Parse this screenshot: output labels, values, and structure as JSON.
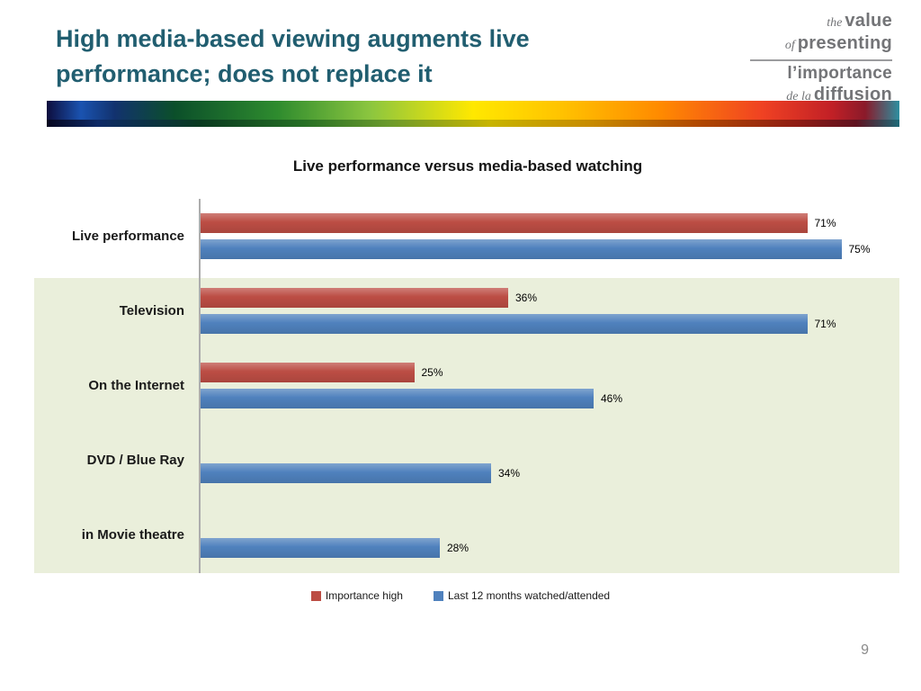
{
  "slide": {
    "title_line1": "High media-based viewing augments live",
    "title_line2": "performance; does not replace it",
    "page_number": "9"
  },
  "logo": {
    "word_the": "the",
    "word_value": "value",
    "word_of": "of",
    "word_presenting": "presenting",
    "word_limportance": "l’importance",
    "word_dela": "de la",
    "word_diffusion": "diffusion"
  },
  "chart_data": {
    "type": "bar",
    "orientation": "horizontal",
    "title": "Live performance versus media-based watching",
    "categories": [
      "Live performance",
      "Television",
      "On the Internet",
      "DVD / Blue Ray",
      "in Movie theatre"
    ],
    "series": [
      {
        "name": "Importance high",
        "color": "#bc4d44",
        "values": [
          71,
          36,
          25,
          null,
          null
        ]
      },
      {
        "name": "Last 12 months watched/attended",
        "color": "#4f81bd",
        "values": [
          75,
          71,
          46,
          34,
          28
        ]
      }
    ],
    "xlim": [
      0,
      100
    ],
    "value_format": "{v}%",
    "legend_position": "bottom",
    "grid": false
  }
}
